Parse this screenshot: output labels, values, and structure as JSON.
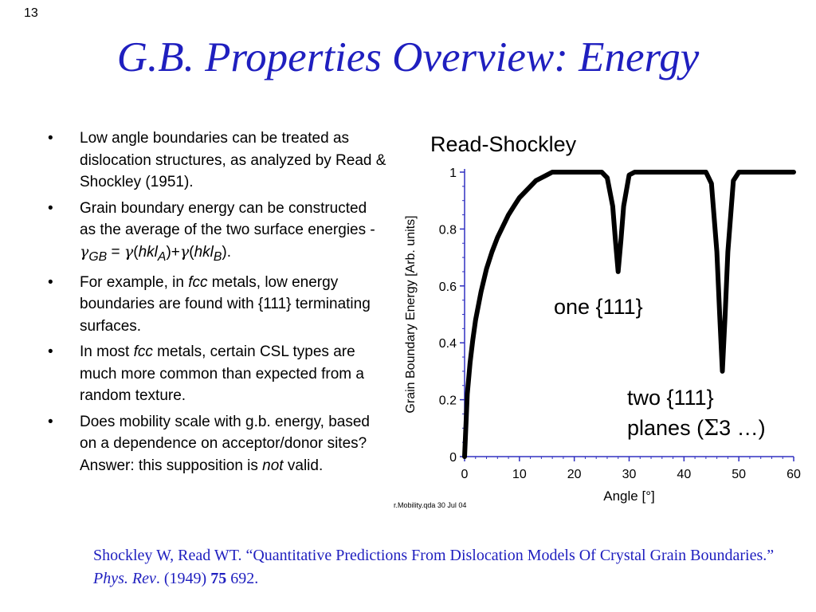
{
  "slide_number": "13",
  "title": "G.B. Properties Overview: Energy",
  "bullets": [
    {
      "text": "Low angle boundaries can be treated as dislocation structures, as analyzed by Read & Shockley (1951)."
    },
    {
      "text_before": "Grain boundary energy can be constructed as the average of the two surface energies -",
      "formula": {
        "gamma": "γ",
        "gb": "GB",
        "eq": " = ",
        "g1": "γ",
        "p1_open": "(",
        "hkl1": "hkl",
        "subA": "A",
        "p1_close": ")",
        "plus": "+",
        "g2": "γ",
        "p2_open": "(",
        "hkl2": "hkl",
        "subB": "B",
        "p2_close": ")",
        "end": "."
      }
    },
    {
      "before": "For example, in ",
      "italic": "fcc",
      "after": " metals, low energy boundaries are found with {111} terminating surfaces."
    },
    {
      "before": "In most ",
      "italic": "fcc",
      "after": " metals, certain CSL types are much more common than expected from a random texture."
    },
    {
      "before": "Does mobility scale with g.b. energy, based on a dependence on acceptor/donor sites?  Answer: this supposition is ",
      "italic": "not",
      "after": " valid."
    }
  ],
  "annotations": {
    "one": "one {111}",
    "two_line1": "two {111}",
    "two_line2_a": "planes (",
    "two_line2_sigma": "Σ",
    "two_line2_b": "3 …)"
  },
  "reference": {
    "part1": "Shockley W, Read WT. “Quantitative Predictions From Dislocation Models Of Crystal Grain Boundaries.” ",
    "journal": "Phys. Rev",
    "part2": ". (1949) ",
    "volume": "75",
    "part3": " 692."
  },
  "chart_data": {
    "type": "line",
    "title": "Read-Shockley",
    "xlabel": "Angle [°]",
    "ylabel": "Grain Boundary Energy [Arb. units]",
    "xlim": [
      0,
      60
    ],
    "ylim": [
      0,
      1
    ],
    "xticks": [
      0,
      10,
      20,
      30,
      40,
      50,
      60
    ],
    "yticks": [
      0,
      0.2,
      0.4,
      0.6,
      0.8,
      1
    ],
    "ytick_labels": [
      "0",
      "0.2",
      "0.4",
      "0.6",
      "0.8",
      "1"
    ],
    "footer_label": "r.Mobility.qda  30 Jul 04",
    "axis_color": "#3030c0",
    "line_color": "#000000",
    "series": [
      {
        "x": [
          0,
          0.5,
          1,
          1.5,
          2,
          3,
          4,
          5,
          6,
          7,
          8,
          9,
          10,
          11,
          12,
          13,
          14,
          15,
          16,
          17,
          18,
          20,
          25,
          26,
          27,
          27.5,
          28,
          28.5,
          29,
          30,
          31,
          35,
          44,
          45,
          46,
          46.5,
          47,
          47.5,
          48,
          49,
          50,
          55,
          60
        ],
        "y": [
          0,
          0.22,
          0.33,
          0.41,
          0.48,
          0.58,
          0.66,
          0.72,
          0.77,
          0.81,
          0.85,
          0.88,
          0.91,
          0.93,
          0.95,
          0.97,
          0.98,
          0.99,
          1.0,
          1.0,
          1.0,
          1.0,
          1.0,
          0.98,
          0.88,
          0.76,
          0.65,
          0.76,
          0.88,
          0.99,
          1.0,
          1.0,
          1.0,
          0.96,
          0.72,
          0.5,
          0.3,
          0.5,
          0.72,
          0.97,
          1.0,
          1.0,
          1.0
        ]
      }
    ]
  }
}
